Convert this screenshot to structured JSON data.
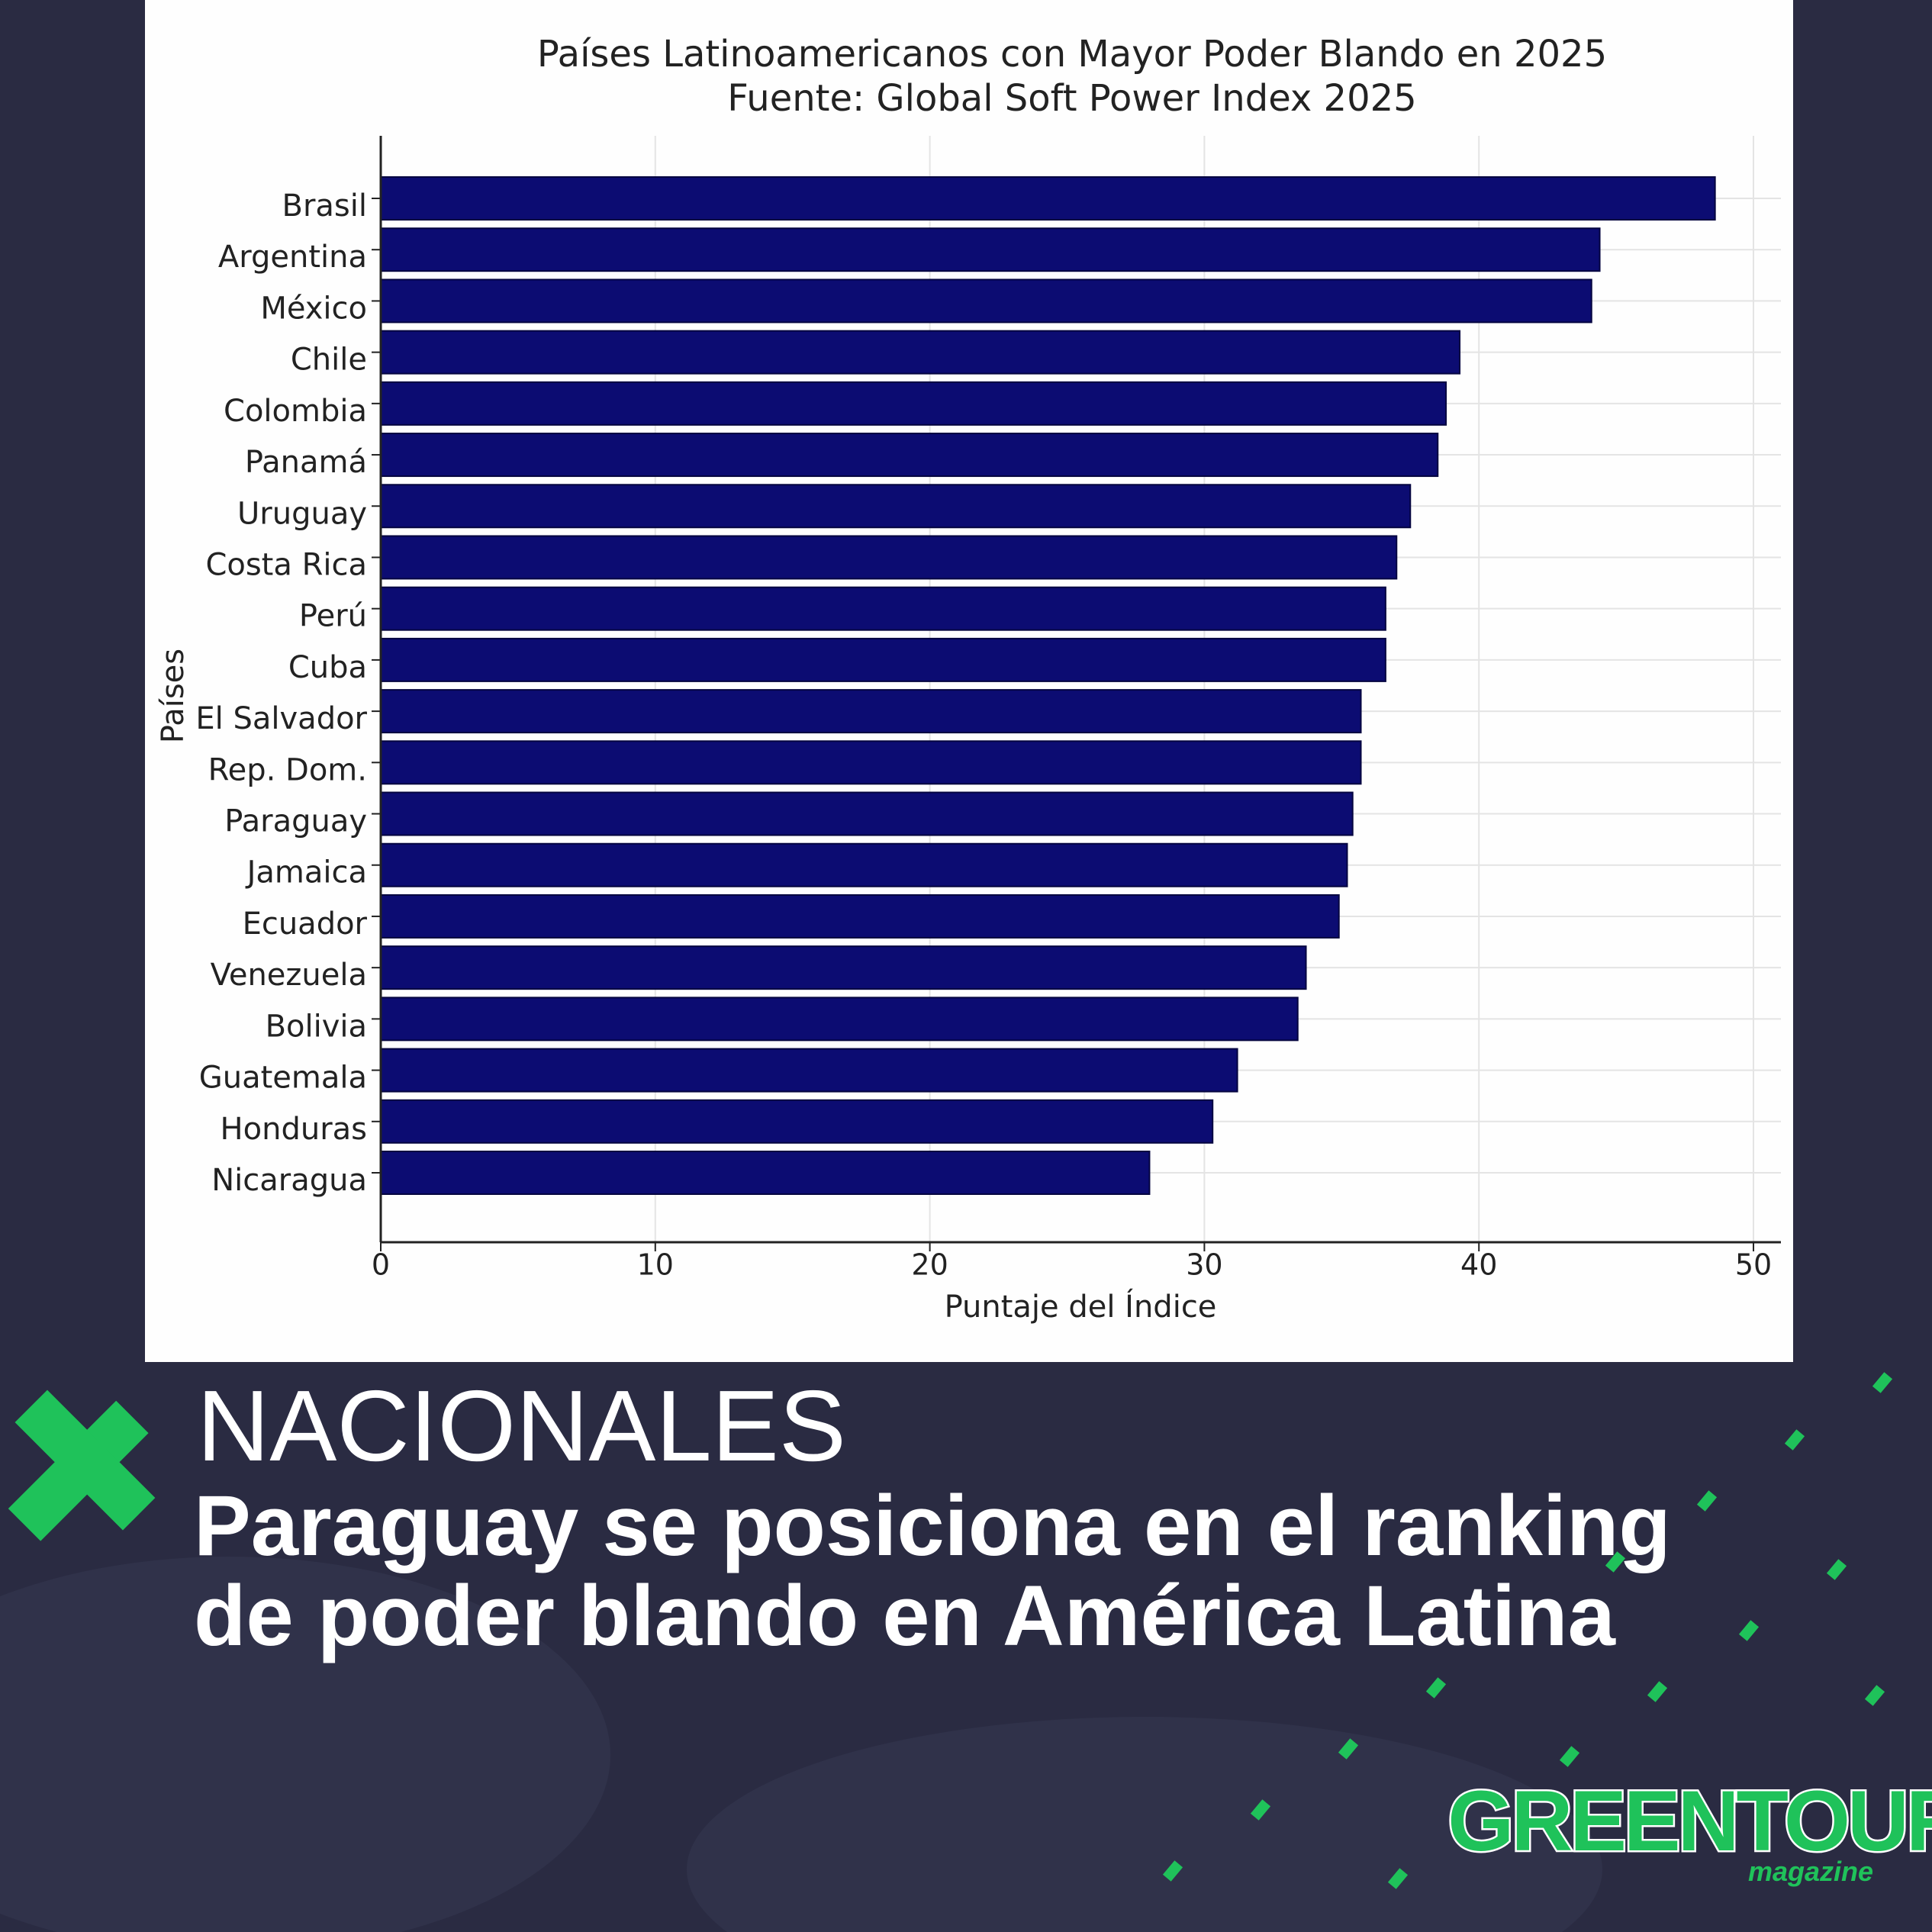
{
  "chart_data": {
    "type": "barh",
    "title": "Países Latinoamericanos con Mayor Poder Blando en 2025",
    "subtitle": "Fuente: Global Soft Power Index 2025",
    "x_label": "Puntaje del Índice",
    "y_label": "Países",
    "categories": [
      "Brasil",
      "Argentina",
      "México",
      "Chile",
      "Colombia",
      "Panamá",
      "Uruguay",
      "Costa Rica",
      "Perú",
      "Cuba",
      "El Salvador",
      "Rep. Dom.",
      "Paraguay",
      "Jamaica",
      "Ecuador",
      "Venezuela",
      "Bolivia",
      "Guatemala",
      "Honduras",
      "Nicaragua"
    ],
    "values": [
      48.6,
      44.4,
      44.1,
      39.3,
      38.8,
      38.5,
      37.5,
      37.0,
      36.6,
      36.6,
      35.7,
      35.7,
      35.4,
      35.2,
      34.9,
      33.7,
      33.4,
      31.2,
      30.3,
      28.0
    ],
    "color": "#0c0c72",
    "xlim": [
      0,
      51
    ],
    "xticks": [
      0,
      10,
      20,
      30,
      40,
      50
    ],
    "grid": true
  },
  "banner": {
    "section": "NACIONALES",
    "headline": [
      "Paraguay se posiciona en el ranking",
      "de poder blando en América Latina"
    ]
  },
  "logo": {
    "name": "GREENTOUR",
    "tagline": "magazine"
  }
}
